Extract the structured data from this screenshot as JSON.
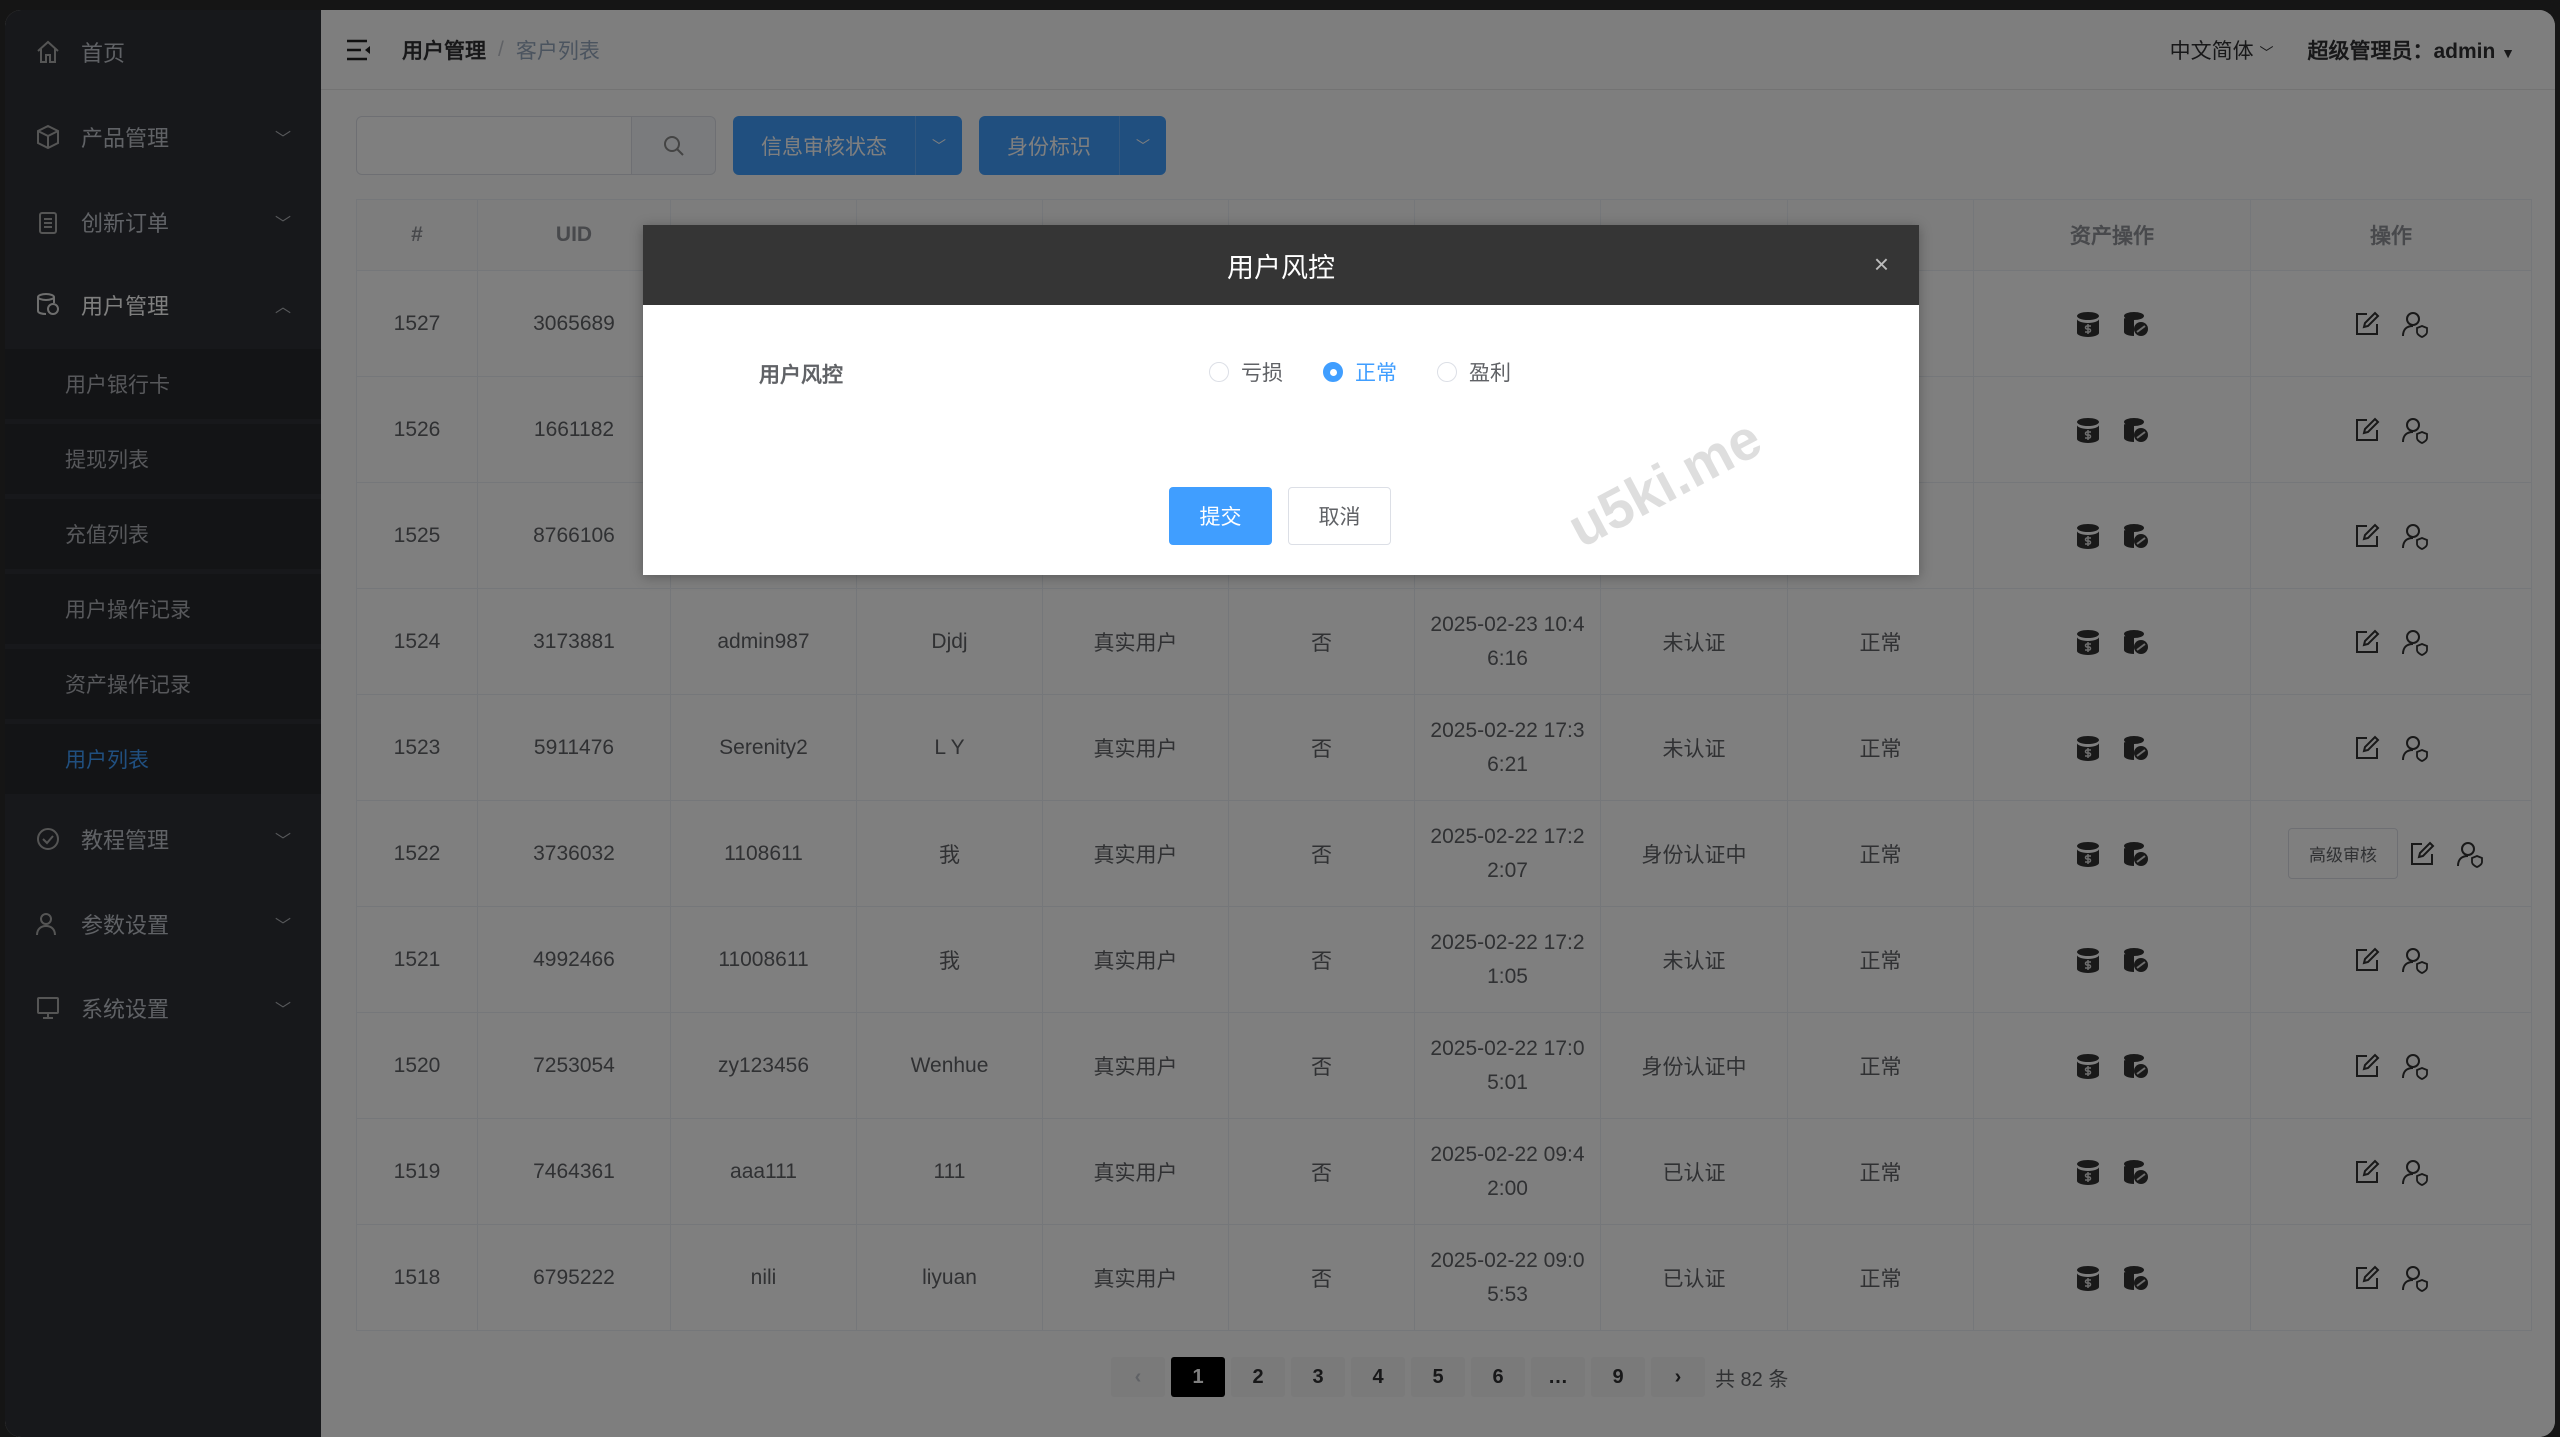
{
  "sidebar": {
    "items": [
      {
        "label": "首页",
        "icon": "home-icon",
        "expandable": false
      },
      {
        "label": "产品管理",
        "icon": "cube-icon",
        "expandable": true
      },
      {
        "label": "创新订单",
        "icon": "clipboard-icon",
        "expandable": true
      },
      {
        "label": "用户管理",
        "icon": "database-icon",
        "expandable": true,
        "open": true
      },
      {
        "label": "教程管理",
        "icon": "check-circle-icon",
        "expandable": true
      },
      {
        "label": "参数设置",
        "icon": "user-icon",
        "expandable": true
      },
      {
        "label": "系统设置",
        "icon": "monitor-icon",
        "expandable": true
      }
    ],
    "subitems": [
      {
        "label": "用户银行卡"
      },
      {
        "label": "提现列表"
      },
      {
        "label": "充值列表"
      },
      {
        "label": "用户操作记录"
      },
      {
        "label": "资产操作记录"
      },
      {
        "label": "用户列表",
        "active": true
      }
    ]
  },
  "header": {
    "breadcrumb": [
      "用户管理",
      "客户列表"
    ],
    "breadcrumb_sep": "/",
    "language": "中文简体",
    "user": "超级管理员：admin"
  },
  "toolbar": {
    "search_placeholder": "",
    "filter1": "信息审核状态",
    "filter2": "身份标识"
  },
  "table": {
    "headers": [
      "#",
      "UID",
      "",
      "",
      "",
      "",
      "",
      "",
      "",
      "资产操作",
      "操作"
    ],
    "rows": [
      {
        "id": "1527",
        "uid": "3065689",
        "username": "",
        "nickname": "",
        "type": "",
        "flag": "",
        "time": "",
        "auth": "",
        "status": ""
      },
      {
        "id": "1526",
        "uid": "1661182",
        "username": "",
        "nickname": "",
        "type": "",
        "flag": "",
        "time": "",
        "auth": "",
        "status": ""
      },
      {
        "id": "1525",
        "uid": "8766106",
        "username": "",
        "nickname": "",
        "type": "",
        "flag": "",
        "time": "",
        "auth": "",
        "status": ""
      },
      {
        "id": "1524",
        "uid": "3173881",
        "username": "admin987",
        "nickname": "Djdj",
        "type": "真实用户",
        "flag": "否",
        "time": "2025-02-23 10:46:16",
        "auth": "未认证",
        "status": "正常"
      },
      {
        "id": "1523",
        "uid": "5911476",
        "username": "Serenity2",
        "nickname": "L Y",
        "type": "真实用户",
        "flag": "否",
        "time": "2025-02-22 17:36:21",
        "auth": "未认证",
        "status": "正常"
      },
      {
        "id": "1522",
        "uid": "3736032",
        "username": "1108611",
        "nickname": "我",
        "type": "真实用户",
        "flag": "否",
        "time": "2025-02-22 17:22:07",
        "auth": "身份认证中",
        "status": "正常",
        "advanced": "高级审核"
      },
      {
        "id": "1521",
        "uid": "4992466",
        "username": "11008611",
        "nickname": "我",
        "type": "真实用户",
        "flag": "否",
        "time": "2025-02-22 17:21:05",
        "auth": "未认证",
        "status": "正常"
      },
      {
        "id": "1520",
        "uid": "7253054",
        "username": "zy123456",
        "nickname": "Wenhue",
        "type": "真实用户",
        "flag": "否",
        "time": "2025-02-22 17:05:01",
        "auth": "身份认证中",
        "status": "正常"
      },
      {
        "id": "1519",
        "uid": "7464361",
        "username": "aaa111",
        "nickname": "111",
        "type": "真实用户",
        "flag": "否",
        "time": "2025-02-22 09:42:00",
        "auth": "已认证",
        "status": "正常"
      },
      {
        "id": "1518",
        "uid": "6795222",
        "username": "nili",
        "nickname": "liyuan",
        "type": "真实用户",
        "flag": "否",
        "time": "2025-02-22 09:05:53",
        "auth": "已认证",
        "status": "正常"
      }
    ]
  },
  "pagination": {
    "prev": "‹",
    "pages": [
      "1",
      "2",
      "3",
      "4",
      "5",
      "6",
      "…",
      "9"
    ],
    "current": "1",
    "next": "›",
    "total": "共 82 条"
  },
  "watermark": "u5ki.me",
  "modal": {
    "title": "用户风控",
    "close": "×",
    "field_label": "用户风控",
    "options": [
      {
        "label": "亏损",
        "checked": false
      },
      {
        "label": "正常",
        "checked": true
      },
      {
        "label": "盈利",
        "checked": false
      }
    ],
    "submit": "提交",
    "cancel": "取消"
  },
  "colors": {
    "primary": "#409eff",
    "sidebar": "#2f3136",
    "modal_header": "#353535"
  }
}
